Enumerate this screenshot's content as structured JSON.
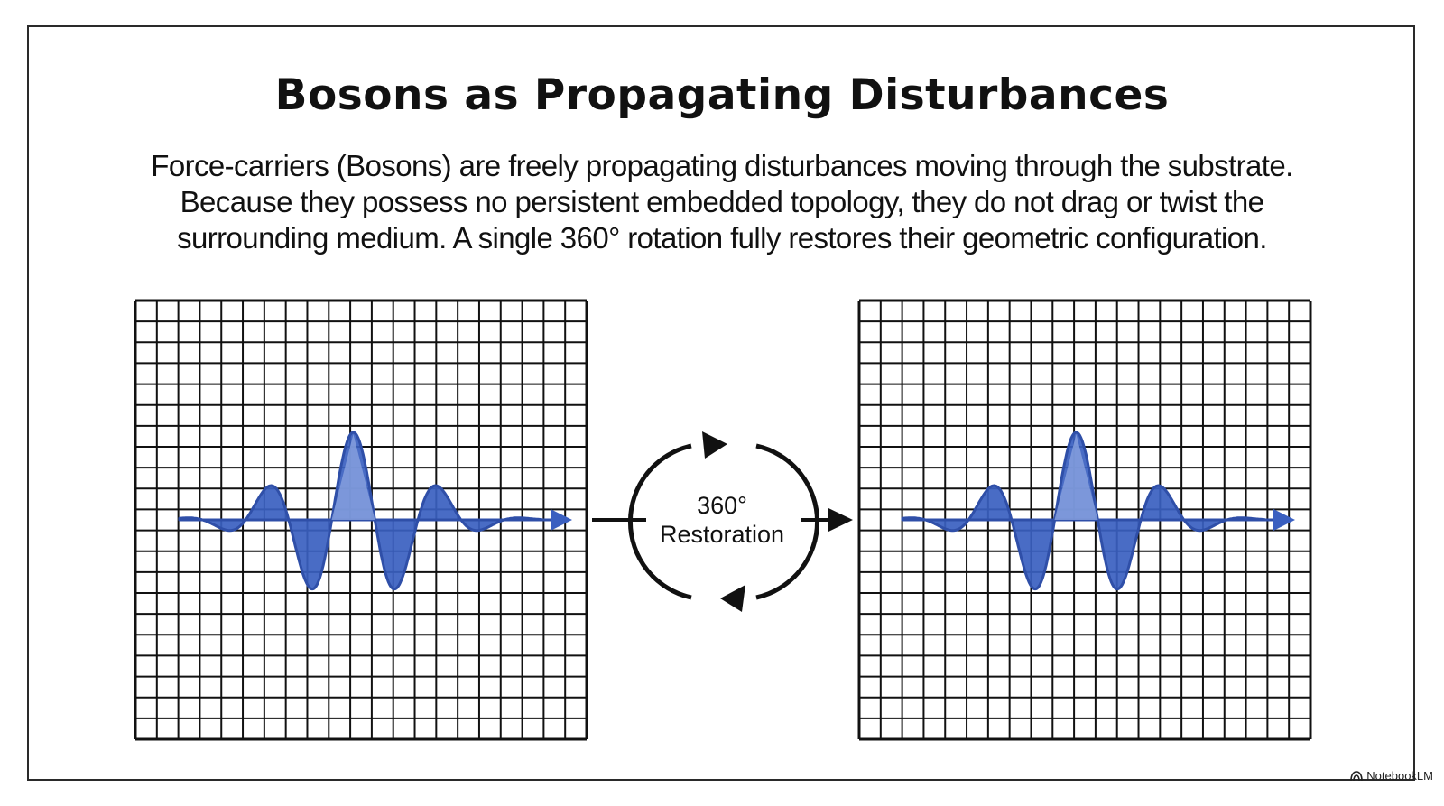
{
  "slide": {
    "title": "Bosons as Propagating Disturbances",
    "body_lines": [
      "Force-carriers (Bosons) are freely propagating disturbances moving through the substrate.",
      "Because they possess no persistent embedded topology, they do not drag or twist the",
      "surrounding medium. A single 360° rotation fully restores their geometric configuration."
    ]
  },
  "center": {
    "label_line1": "360°",
    "label_line2": "Restoration"
  },
  "colors": {
    "wave_fill": "#3a5fc0",
    "wave_fill_light": "#8aa3de",
    "wave_stroke": "#2f4fa8",
    "grid": "#111111",
    "frame": "#2a2a2a"
  },
  "footer": {
    "brand": "NotebookLM",
    "icon": "notebooklm-logo-icon"
  }
}
